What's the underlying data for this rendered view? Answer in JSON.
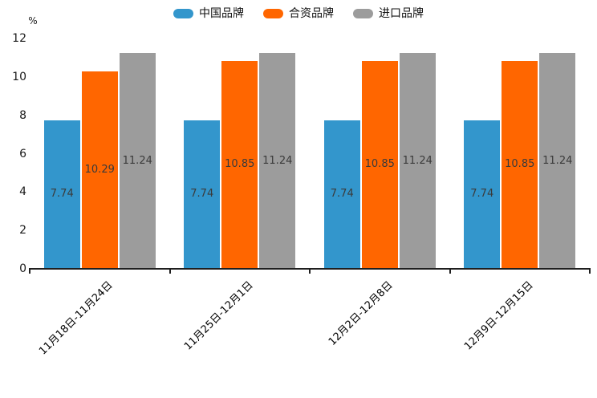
{
  "chart_data": {
    "type": "bar",
    "title": "",
    "xlabel": "",
    "ylabel": "%",
    "categories": [
      "11月18日-11月24日",
      "11月25日-12月1日",
      "12月2日-12月8日",
      "12月9日-12月15日"
    ],
    "series": [
      {
        "name": "中国品牌",
        "color": "#3396CC",
        "values": [
          7.74,
          7.74,
          7.74,
          7.74
        ]
      },
      {
        "name": "合资品牌",
        "color": "#FF6600",
        "values": [
          10.29,
          10.85,
          10.85,
          10.85
        ]
      },
      {
        "name": "进口品牌",
        "color": "#9C9C9C",
        "values": [
          11.24,
          11.24,
          11.24,
          11.24
        ]
      }
    ],
    "yticks": [
      0,
      2,
      4,
      6,
      8,
      10,
      12
    ],
    "ylim": [
      0,
      12
    ],
    "grid": false,
    "legend_position": "top",
    "value_label_decimals": 2
  },
  "colors": {
    "axis": "#1f1f1f",
    "value_label": "#3a3a3a",
    "tick_label": "#1a1a1a",
    "background": "#ffffff"
  }
}
